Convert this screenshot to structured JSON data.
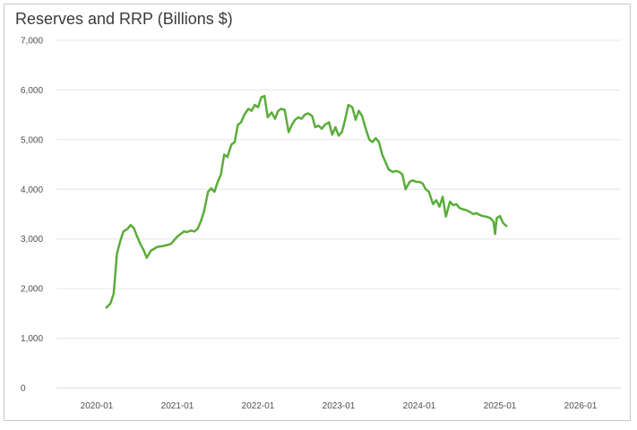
{
  "chart_data": {
    "type": "line",
    "title": "Reserves and RRP (Billions $)",
    "xlabel": "",
    "ylabel": "",
    "ylim": [
      0,
      7000
    ],
    "grid": "horizontal",
    "legend": "none",
    "y_ticks": [
      "0",
      "1,000",
      "2,000",
      "3,000",
      "4,000",
      "5,000",
      "6,000",
      "7,000"
    ],
    "y_tick_values": [
      0,
      1000,
      2000,
      3000,
      4000,
      5000,
      6000,
      7000
    ],
    "x_ticks": [
      "2020-01",
      "2021-01",
      "2022-01",
      "2023-01",
      "2024-01",
      "2025-01",
      "2026-01"
    ],
    "x_tick_years": [
      2020.0,
      2021.0,
      2022.0,
      2023.0,
      2024.0,
      2025.0,
      2026.0
    ],
    "xlim": [
      2019.5,
      2026.5
    ],
    "series": [
      {
        "color": "#5aad3a",
        "points": [
          [
            2020.12,
            1620
          ],
          [
            2020.17,
            1700
          ],
          [
            2020.21,
            1900
          ],
          [
            2020.25,
            2700
          ],
          [
            2020.29,
            2950
          ],
          [
            2020.33,
            3150
          ],
          [
            2020.38,
            3200
          ],
          [
            2020.42,
            3280
          ],
          [
            2020.46,
            3220
          ],
          [
            2020.5,
            3050
          ],
          [
            2020.54,
            2900
          ],
          [
            2020.58,
            2780
          ],
          [
            2020.62,
            2620
          ],
          [
            2020.67,
            2760
          ],
          [
            2020.75,
            2840
          ],
          [
            2020.83,
            2860
          ],
          [
            2020.92,
            2900
          ],
          [
            2021.0,
            3050
          ],
          [
            2021.04,
            3100
          ],
          [
            2021.08,
            3150
          ],
          [
            2021.12,
            3140
          ],
          [
            2021.17,
            3170
          ],
          [
            2021.21,
            3150
          ],
          [
            2021.25,
            3200
          ],
          [
            2021.29,
            3350
          ],
          [
            2021.33,
            3550
          ],
          [
            2021.38,
            3950
          ],
          [
            2021.42,
            4020
          ],
          [
            2021.46,
            3950
          ],
          [
            2021.5,
            4150
          ],
          [
            2021.54,
            4300
          ],
          [
            2021.58,
            4700
          ],
          [
            2021.62,
            4650
          ],
          [
            2021.67,
            4900
          ],
          [
            2021.71,
            4950
          ],
          [
            2021.75,
            5300
          ],
          [
            2021.79,
            5350
          ],
          [
            2021.83,
            5500
          ],
          [
            2021.88,
            5620
          ],
          [
            2021.92,
            5580
          ],
          [
            2021.96,
            5700
          ],
          [
            2022.0,
            5650
          ],
          [
            2022.04,
            5850
          ],
          [
            2022.08,
            5880
          ],
          [
            2022.12,
            5450
          ],
          [
            2022.17,
            5550
          ],
          [
            2022.21,
            5420
          ],
          [
            2022.25,
            5580
          ],
          [
            2022.29,
            5620
          ],
          [
            2022.33,
            5600
          ],
          [
            2022.38,
            5150
          ],
          [
            2022.42,
            5300
          ],
          [
            2022.46,
            5400
          ],
          [
            2022.5,
            5450
          ],
          [
            2022.54,
            5420
          ],
          [
            2022.58,
            5500
          ],
          [
            2022.62,
            5530
          ],
          [
            2022.67,
            5480
          ],
          [
            2022.71,
            5250
          ],
          [
            2022.75,
            5280
          ],
          [
            2022.79,
            5220
          ],
          [
            2022.83,
            5300
          ],
          [
            2022.88,
            5350
          ],
          [
            2022.92,
            5100
          ],
          [
            2022.96,
            5250
          ],
          [
            2023.0,
            5080
          ],
          [
            2023.04,
            5150
          ],
          [
            2023.08,
            5400
          ],
          [
            2023.12,
            5700
          ],
          [
            2023.17,
            5650
          ],
          [
            2023.21,
            5400
          ],
          [
            2023.25,
            5580
          ],
          [
            2023.29,
            5480
          ],
          [
            2023.33,
            5250
          ],
          [
            2023.38,
            5000
          ],
          [
            2023.42,
            4950
          ],
          [
            2023.46,
            5030
          ],
          [
            2023.5,
            4950
          ],
          [
            2023.54,
            4700
          ],
          [
            2023.58,
            4550
          ],
          [
            2023.62,
            4400
          ],
          [
            2023.67,
            4350
          ],
          [
            2023.71,
            4370
          ],
          [
            2023.75,
            4350
          ],
          [
            2023.79,
            4300
          ],
          [
            2023.83,
            4000
          ],
          [
            2023.88,
            4150
          ],
          [
            2023.92,
            4180
          ],
          [
            2023.96,
            4150
          ],
          [
            2024.0,
            4150
          ],
          [
            2024.04,
            4120
          ],
          [
            2024.08,
            4000
          ],
          [
            2024.12,
            3950
          ],
          [
            2024.17,
            3700
          ],
          [
            2024.21,
            3780
          ],
          [
            2024.25,
            3650
          ],
          [
            2024.29,
            3850
          ],
          [
            2024.33,
            3450
          ],
          [
            2024.38,
            3750
          ],
          [
            2024.42,
            3680
          ],
          [
            2024.46,
            3700
          ],
          [
            2024.5,
            3620
          ],
          [
            2024.54,
            3600
          ],
          [
            2024.58,
            3580
          ],
          [
            2024.62,
            3550
          ],
          [
            2024.67,
            3500
          ],
          [
            2024.71,
            3520
          ],
          [
            2024.75,
            3480
          ],
          [
            2024.79,
            3460
          ],
          [
            2024.83,
            3450
          ],
          [
            2024.88,
            3420
          ],
          [
            2024.92,
            3350
          ],
          [
            2024.94,
            3100
          ],
          [
            2024.96,
            3420
          ],
          [
            2025.0,
            3460
          ],
          [
            2025.04,
            3320
          ],
          [
            2025.08,
            3260
          ]
        ]
      }
    ]
  }
}
